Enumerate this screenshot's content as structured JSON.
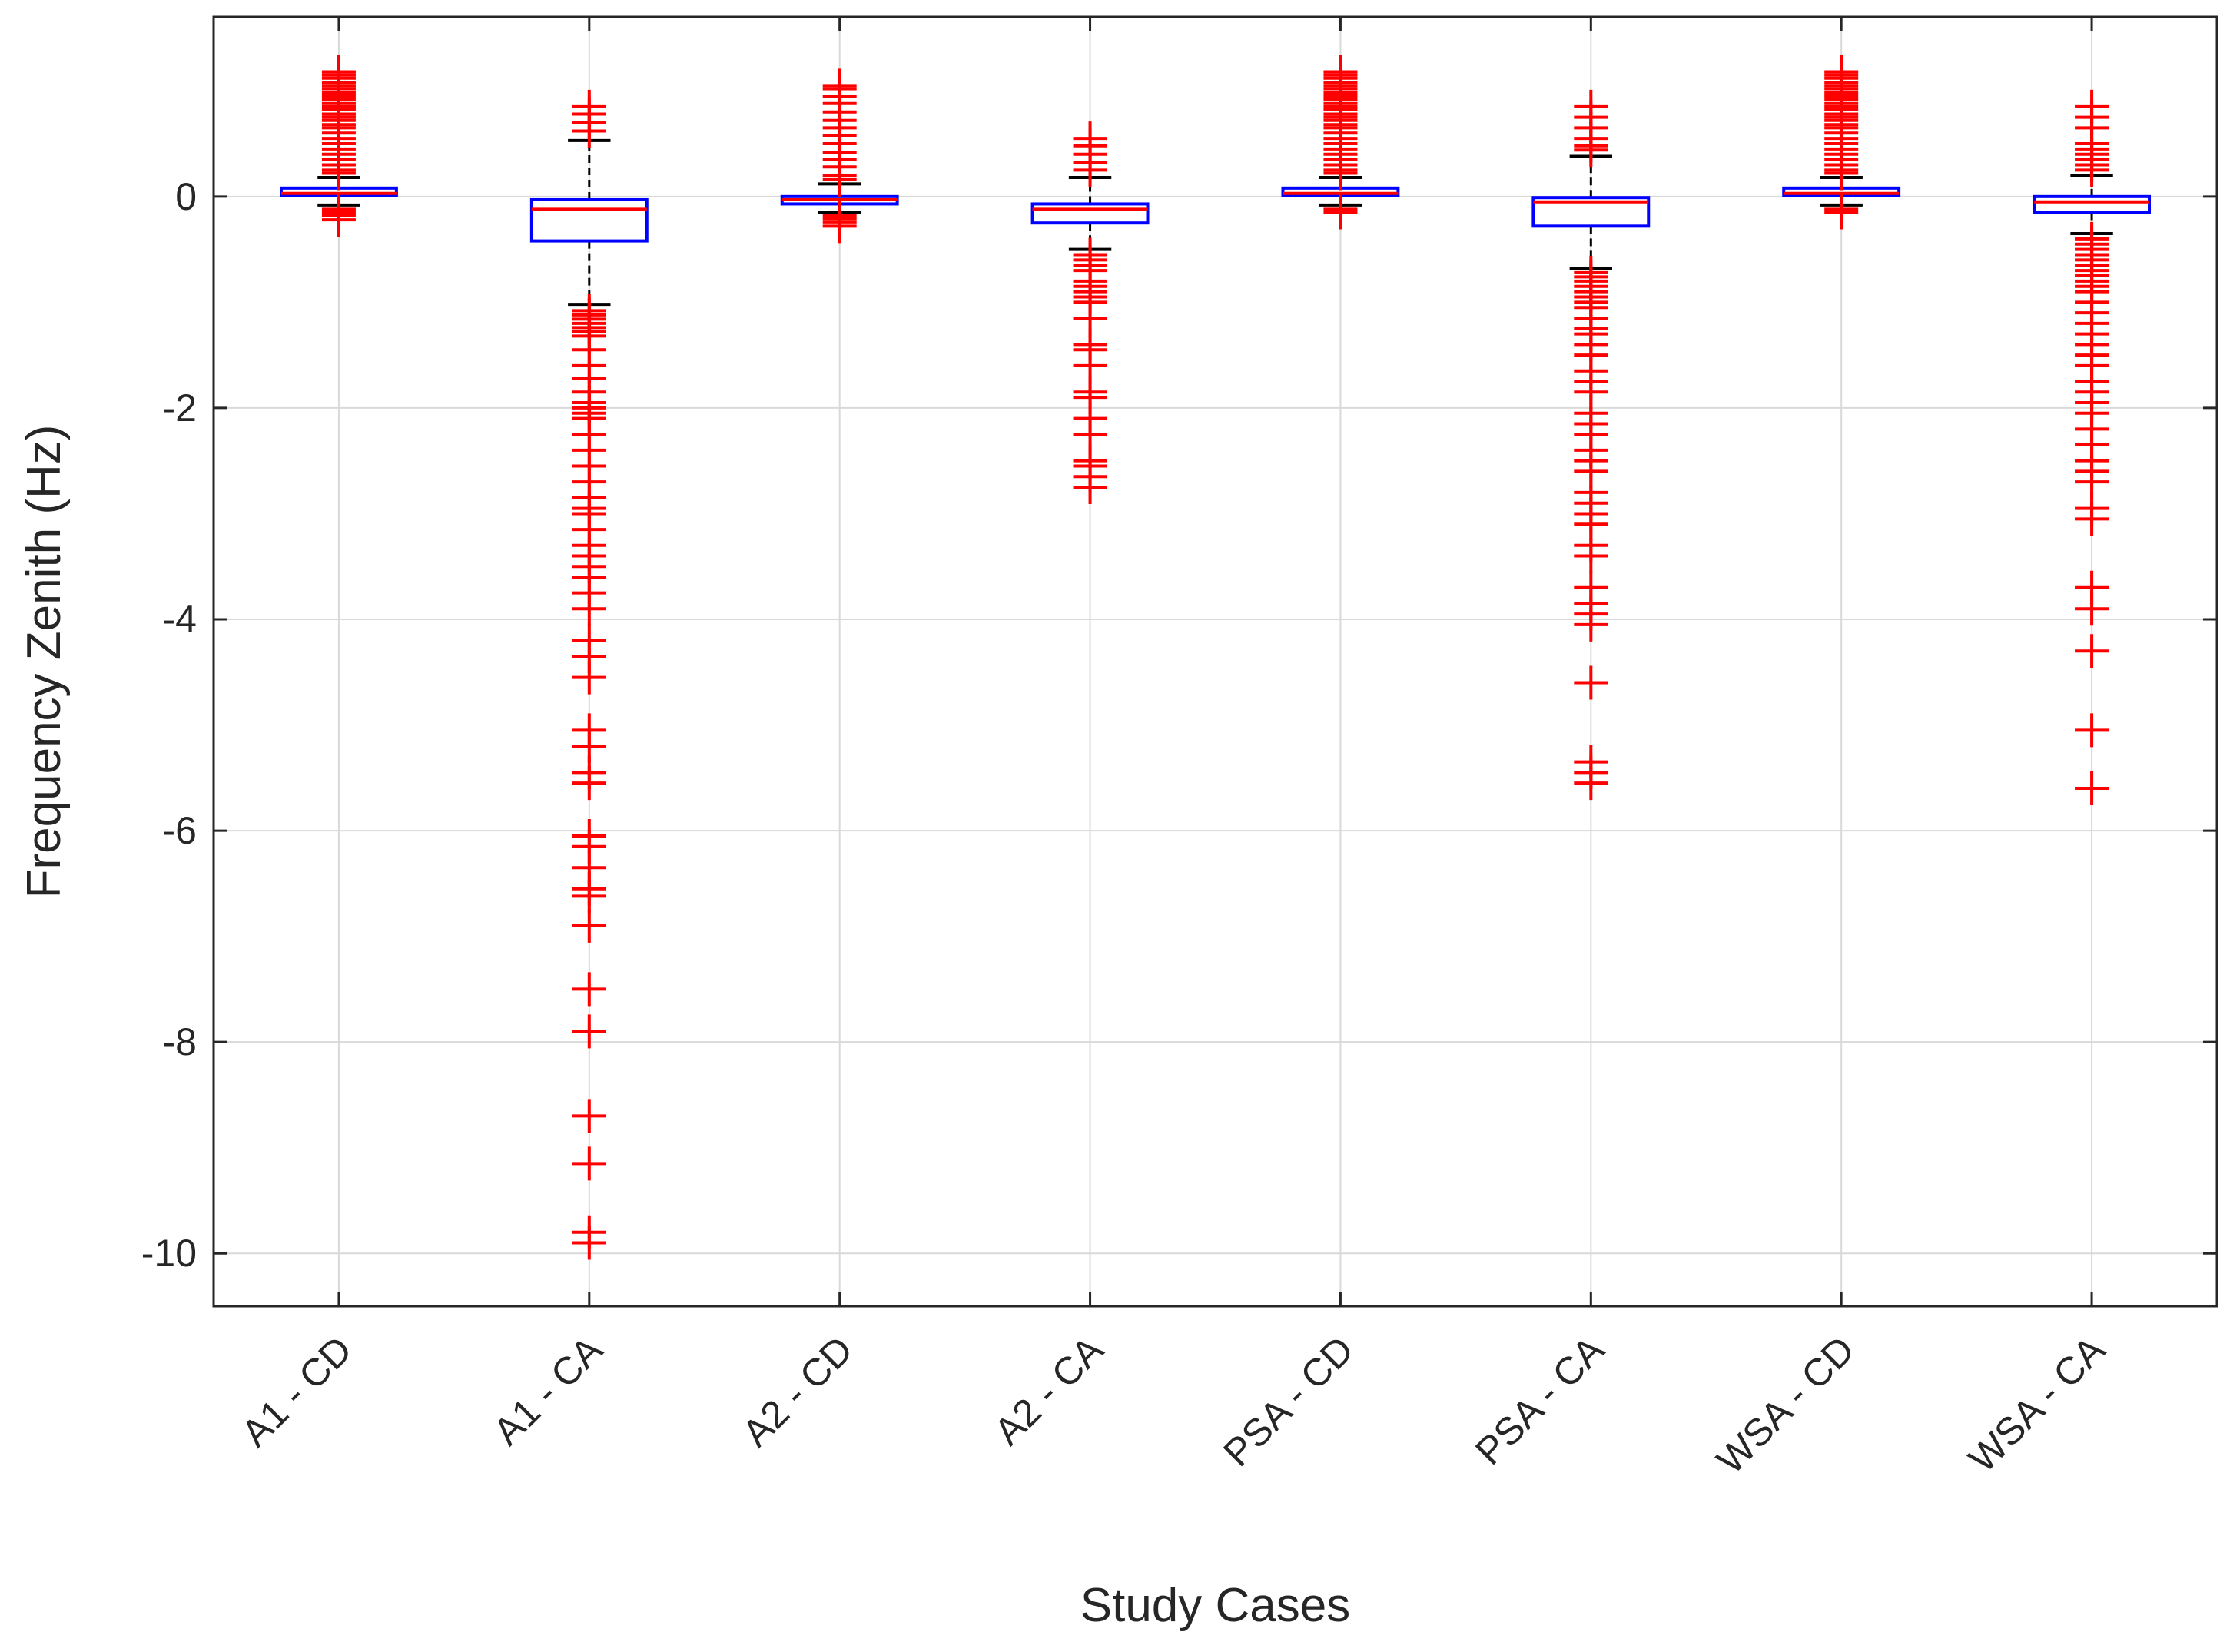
{
  "chart_data": {
    "type": "boxplot",
    "title": "",
    "xlabel": "Study Cases",
    "ylabel": "Frequency Zenith (Hz)",
    "ylim": [
      -10.5,
      1.7
    ],
    "yticks": [
      0,
      -2,
      -4,
      -6,
      -8,
      -10
    ],
    "ytick_labels": [
      "0",
      "-2",
      "-4",
      "-6",
      "-8",
      "-10"
    ],
    "grid": true,
    "colors": {
      "box": "#0000ff",
      "median": "#ff0000",
      "whisker": "#000000",
      "outlier": "#ff0000",
      "grid": "#d9d9d9",
      "axis": "#262626"
    },
    "categories": [
      "A1 - CD",
      "A1 - CA",
      "A2 - CD",
      "A2 - CA",
      "PSA - CD",
      "PSA - CA",
      "WSA - CD",
      "WSA - CA"
    ],
    "boxes": [
      {
        "category": "A1 - CD",
        "q1": 0.01,
        "median": 0.03,
        "q3": 0.08,
        "whisker_low": -0.08,
        "whisker_high": 0.18,
        "outliers": [
          1.18,
          1.15,
          1.12,
          1.08,
          1.05,
          1.02,
          0.98,
          0.95,
          0.92,
          0.88,
          0.85,
          0.82,
          0.78,
          0.75,
          0.72,
          0.68,
          0.65,
          0.6,
          0.55,
          0.5,
          0.45,
          0.4,
          0.35,
          0.3,
          0.25,
          0.22,
          -0.12,
          -0.15,
          -0.18,
          -0.22
        ]
      },
      {
        "category": "A1 - CA",
        "q1": -0.42,
        "median": -0.12,
        "q3": -0.03,
        "whisker_low": -1.02,
        "whisker_high": 0.53,
        "outliers": [
          0.85,
          0.78,
          0.7,
          0.62,
          -1.08,
          -1.12,
          -1.16,
          -1.2,
          -1.24,
          -1.28,
          -1.32,
          -1.45,
          -1.6,
          -1.72,
          -1.85,
          -1.95,
          -2.0,
          -2.05,
          -2.1,
          -2.25,
          -2.4,
          -2.55,
          -2.7,
          -2.85,
          -2.95,
          -3.0,
          -3.15,
          -3.3,
          -3.4,
          -3.5,
          -3.6,
          -3.75,
          -3.9,
          -4.2,
          -4.35,
          -4.55,
          -5.05,
          -5.2,
          -5.45,
          -5.55,
          -6.05,
          -6.15,
          -6.35,
          -6.55,
          -6.62,
          -6.9,
          -7.5,
          -7.9,
          -8.7,
          -9.15,
          -9.8,
          -9.9
        ]
      },
      {
        "category": "A2 - CD",
        "q1": -0.07,
        "median": -0.03,
        "q3": 0.0,
        "whisker_low": -0.15,
        "whisker_high": 0.12,
        "outliers": [
          1.05,
          1.02,
          0.95,
          0.88,
          0.8,
          0.72,
          0.65,
          0.58,
          0.5,
          0.42,
          0.35,
          0.28,
          0.2,
          0.16,
          -0.18,
          -0.21,
          -0.24,
          -0.28
        ]
      },
      {
        "category": "A2 - CA",
        "q1": -0.25,
        "median": -0.12,
        "q3": -0.07,
        "whisker_low": -0.5,
        "whisker_high": 0.18,
        "outliers": [
          0.55,
          0.48,
          0.4,
          0.32,
          0.25,
          -0.55,
          -0.6,
          -0.65,
          -0.7,
          -0.8,
          -0.85,
          -0.9,
          -0.95,
          -1.0,
          -1.15,
          -1.4,
          -1.45,
          -1.6,
          -1.85,
          -1.9,
          -2.1,
          -2.25,
          -2.5,
          -2.55,
          -2.65,
          -2.75
        ]
      },
      {
        "category": "PSA - CD",
        "q1": 0.01,
        "median": 0.03,
        "q3": 0.08,
        "whisker_low": -0.08,
        "whisker_high": 0.18,
        "outliers": [
          1.18,
          1.15,
          1.12,
          1.08,
          1.05,
          1.02,
          0.98,
          0.95,
          0.92,
          0.88,
          0.85,
          0.82,
          0.78,
          0.75,
          0.72,
          0.68,
          0.65,
          0.6,
          0.55,
          0.5,
          0.45,
          0.4,
          0.35,
          0.3,
          0.25,
          0.22,
          -0.12,
          -0.15
        ]
      },
      {
        "category": "PSA - CA",
        "q1": -0.28,
        "median": -0.05,
        "q3": -0.01,
        "whisker_low": -0.68,
        "whisker_high": 0.38,
        "outliers": [
          0.85,
          0.75,
          0.65,
          0.55,
          0.48,
          0.44,
          -0.72,
          -0.76,
          -0.8,
          -0.85,
          -0.9,
          -0.95,
          -1.0,
          -1.05,
          -1.15,
          -1.25,
          -1.3,
          -1.4,
          -1.5,
          -1.65,
          -1.75,
          -1.85,
          -2.05,
          -2.15,
          -2.25,
          -2.4,
          -2.5,
          -2.6,
          -2.8,
          -2.9,
          -3.0,
          -3.1,
          -3.3,
          -3.4,
          -3.7,
          -3.85,
          -3.95,
          -4.05,
          -4.6,
          -5.35,
          -5.45,
          -5.55
        ]
      },
      {
        "category": "WSA - CD",
        "q1": 0.01,
        "median": 0.03,
        "q3": 0.08,
        "whisker_low": -0.08,
        "whisker_high": 0.18,
        "outliers": [
          1.18,
          1.15,
          1.12,
          1.08,
          1.05,
          1.02,
          0.98,
          0.95,
          0.92,
          0.88,
          0.85,
          0.82,
          0.78,
          0.75,
          0.72,
          0.68,
          0.65,
          0.6,
          0.55,
          0.5,
          0.45,
          0.4,
          0.35,
          0.3,
          0.25,
          0.22,
          -0.12,
          -0.15
        ]
      },
      {
        "category": "WSA - CA",
        "q1": -0.15,
        "median": -0.05,
        "q3": 0.0,
        "whisker_low": -0.35,
        "whisker_high": 0.2,
        "outliers": [
          0.85,
          0.75,
          0.65,
          0.5,
          0.45,
          0.4,
          0.35,
          0.3,
          0.25,
          -0.4,
          -0.45,
          -0.5,
          -0.55,
          -0.6,
          -0.65,
          -0.7,
          -0.75,
          -0.8,
          -0.85,
          -0.9,
          -1.0,
          -1.1,
          -1.2,
          -1.3,
          -1.4,
          -1.5,
          -1.6,
          -1.75,
          -1.85,
          -1.95,
          -2.05,
          -2.2,
          -2.35,
          -2.5,
          -2.6,
          -2.7,
          -2.95,
          -3.05,
          -3.7,
          -3.9,
          -4.3,
          -5.05,
          -5.6
        ]
      }
    ]
  }
}
